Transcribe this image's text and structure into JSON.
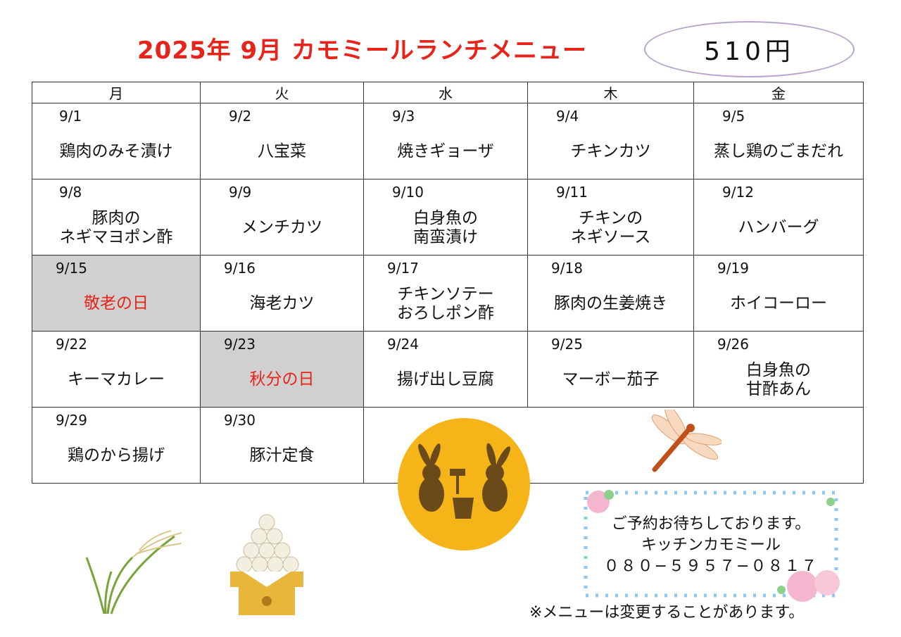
{
  "header": {
    "title": "2025年  9月  カモミールランチメニュー",
    "price": "510円"
  },
  "weekdays": [
    "月",
    "火",
    "水",
    "木",
    "金"
  ],
  "weeks": [
    [
      {
        "date": "9/1",
        "dish": "鶏肉のみそ漬け"
      },
      {
        "date": "9/2",
        "dish": "八宝菜"
      },
      {
        "date": "9/3",
        "dish": "焼きギョーザ"
      },
      {
        "date": "9/4",
        "dish": "チキンカツ"
      },
      {
        "date": "9/5",
        "dish": "蒸し鶏のごまだれ"
      }
    ],
    [
      {
        "date": "9/8",
        "dish": "豚肉の\nネギマヨポン酢"
      },
      {
        "date": "9/9",
        "dish": "メンチカツ"
      },
      {
        "date": "9/10",
        "dish": "白身魚の\n南蛮漬け"
      },
      {
        "date": "9/11",
        "dish": "チキンの\nネギソース"
      },
      {
        "date": "9/12",
        "dish": "ハンバーグ"
      }
    ],
    [
      {
        "date": "9/15",
        "dish": "敬老の日",
        "holiday": true
      },
      {
        "date": "9/16",
        "dish": "海老カツ"
      },
      {
        "date": "9/17",
        "dish": "チキンソテー\nおろしポン酢"
      },
      {
        "date": "9/18",
        "dish": "豚肉の生姜焼き"
      },
      {
        "date": "9/19",
        "dish": "ホイコーロー"
      }
    ],
    [
      {
        "date": "9/22",
        "dish": "キーマカレー"
      },
      {
        "date": "9/23",
        "dish": "秋分の日",
        "holiday": true
      },
      {
        "date": "9/24",
        "dish": "揚げ出し豆腐"
      },
      {
        "date": "9/25",
        "dish": "マーボー茄子"
      },
      {
        "date": "9/26",
        "dish": "白身魚の\n甘酢あん"
      }
    ],
    [
      {
        "date": "9/29",
        "dish": "鶏のから揚げ"
      },
      {
        "date": "9/30",
        "dish": "豚汁定食"
      }
    ]
  ],
  "contact": {
    "line1": "ご予約お待ちしております。",
    "line2": "キッチンカモミール",
    "phone": "０８０−５９５７−０８１７"
  },
  "notice": "※メニューは変更することがあります。",
  "colors": {
    "title": "#e8231a",
    "holiday_text": "#e8231a",
    "holiday_bg": "#d0d0d0",
    "moon": "#f5b417"
  },
  "decorations": [
    "moon-rabbits-icon",
    "dragonfly-icon",
    "susuki-grass-icon",
    "tsukimi-dango-icon",
    "hydrangea-frame"
  ]
}
